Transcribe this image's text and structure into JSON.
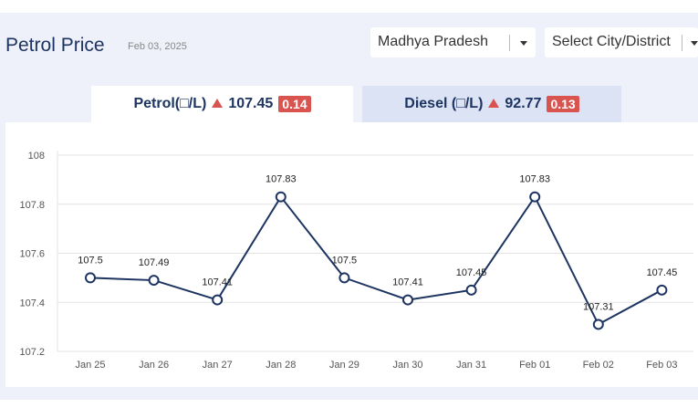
{
  "header": {
    "title": "Petrol Price",
    "date": "Feb 03, 2025"
  },
  "filters": {
    "state": "Madhya Pradesh",
    "city": "Select City/District"
  },
  "tabs": [
    {
      "label": "Petrol(□/L)",
      "price": "107.45",
      "change": "0.14",
      "active": true
    },
    {
      "label": "Diesel (□/L)",
      "price": "92.77",
      "change": "0.13",
      "active": false
    }
  ],
  "colors": {
    "line": "#1d3461",
    "up_arrow": "#d9534f",
    "badge": "#d9534f",
    "active_tab": "#ffffff",
    "inactive_tab": "#dbe3f5"
  },
  "chart_data": {
    "type": "line",
    "title": "",
    "xlabel": "",
    "ylabel": "",
    "categories": [
      "Jan 25",
      "Jan 26",
      "Jan 27",
      "Jan 28",
      "Jan 29",
      "Jan 30",
      "Jan 31",
      "Feb 01",
      "Feb 02",
      "Feb 03"
    ],
    "values": [
      107.5,
      107.49,
      107.41,
      107.83,
      107.5,
      107.41,
      107.45,
      107.83,
      107.31,
      107.45
    ],
    "data_labels": [
      "107.5",
      "107.49",
      "107.41",
      "107.83",
      "107.5",
      "107.41",
      "107.45",
      "107.83",
      "107.31",
      "107.45"
    ],
    "ylim": [
      107.2,
      108
    ],
    "yticks": [
      "107.2",
      "107.4",
      "107.6",
      "107.8",
      "108"
    ],
    "ytick_values": [
      107.2,
      107.4,
      107.6,
      107.8,
      108
    ],
    "grid": true,
    "legend": "none"
  }
}
